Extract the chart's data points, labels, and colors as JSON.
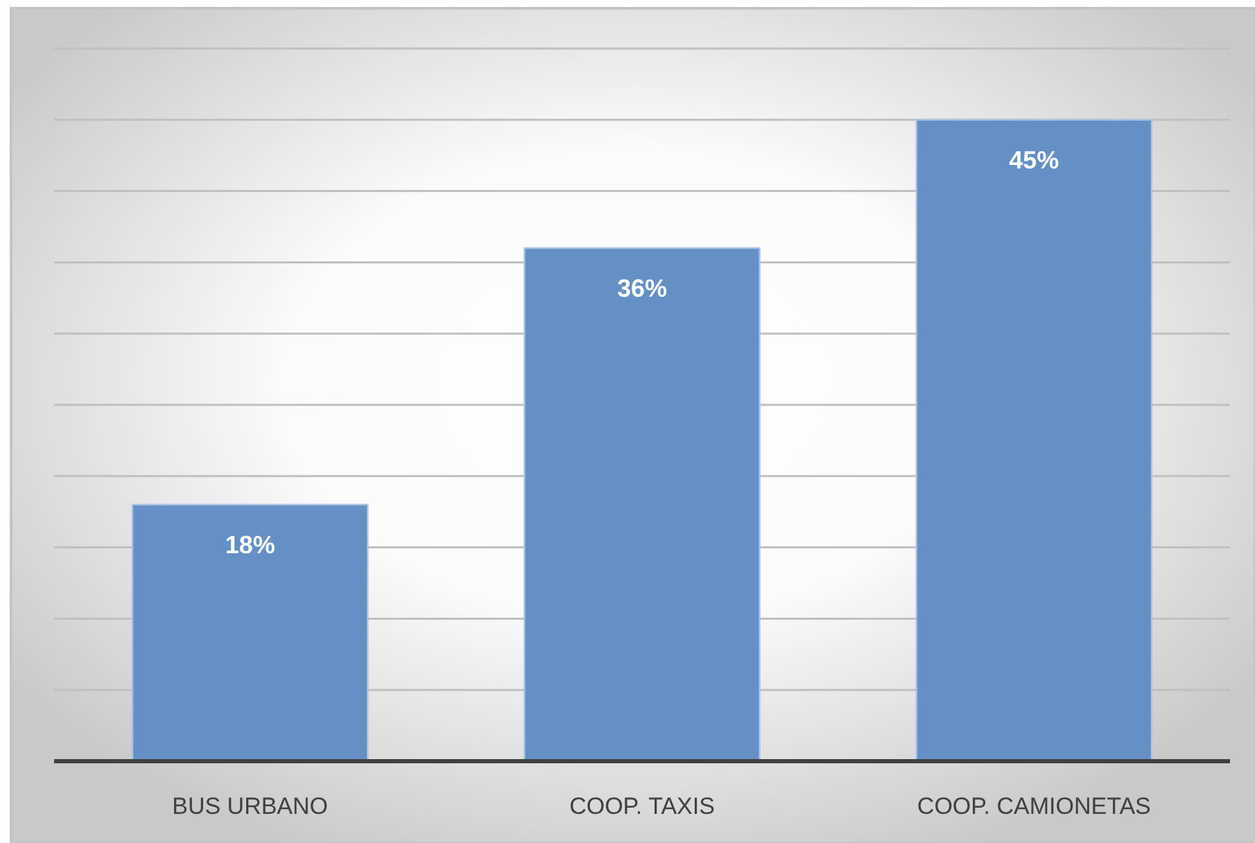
{
  "chart_data": {
    "type": "bar",
    "categories": [
      "BUS URBANO",
      "COOP. TAXIS",
      "COOP. CAMIONETAS"
    ],
    "values": [
      18,
      36,
      45
    ],
    "value_labels": [
      "18%",
      "36%",
      "45%"
    ],
    "color": "#6590c5",
    "ylim": [
      0,
      50
    ],
    "yticks": [
      {
        "value": 0,
        "label": null
      },
      {
        "value": 5,
        "label": null
      },
      {
        "value": 10,
        "label": null
      },
      {
        "value": 15,
        "label": null
      },
      {
        "value": 20,
        "label": null
      },
      {
        "value": 25,
        "label": null
      },
      {
        "value": 30,
        "label": null
      },
      {
        "value": 35,
        "label": null
      },
      {
        "value": 40,
        "label": null
      },
      {
        "value": 45,
        "label": null
      },
      {
        "value": 50,
        "label": null
      }
    ],
    "grid": "y",
    "tick_labels": "x"
  }
}
